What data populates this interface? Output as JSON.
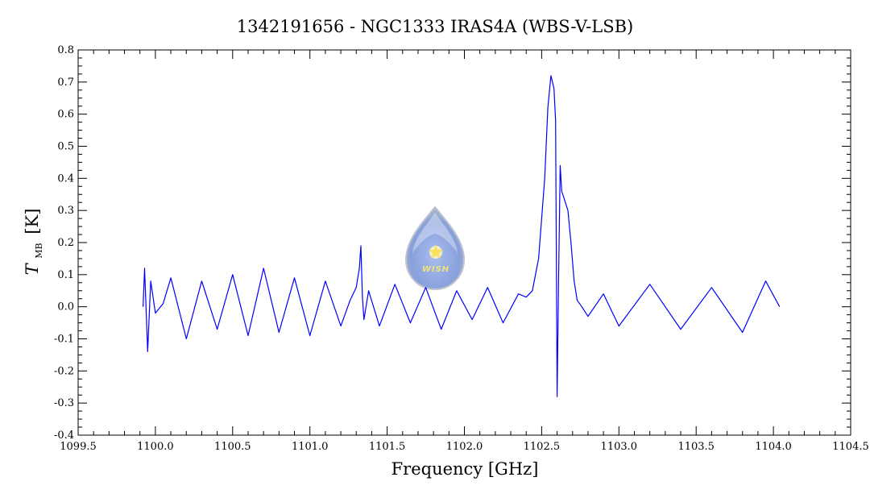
{
  "colors": {
    "series": "#0000ff",
    "frame": "#000000",
    "background": "#ffffff"
  },
  "logo": {
    "text": "WISH",
    "icon": "water-drop-star-icon"
  },
  "chart_data": {
    "type": "line",
    "title": "1342191656 - NGC1333 IRAS4A (WBS-V-LSB)",
    "xlabel": "Frequency [GHz]",
    "ylabel_main": "T",
    "ylabel_sub": "MB",
    "ylabel_unit": "[K]",
    "xlim": [
      1099.5,
      1104.5
    ],
    "ylim": [
      -0.4,
      0.8
    ],
    "x_ticks": [
      {
        "value": 1099.5,
        "label": "1099.5"
      },
      {
        "value": 1100.0,
        "label": "1100.0"
      },
      {
        "value": 1100.5,
        "label": "1100.5"
      },
      {
        "value": 1101.0,
        "label": "1101.0"
      },
      {
        "value": 1101.5,
        "label": "1101.5"
      },
      {
        "value": 1102.0,
        "label": "1102.0"
      },
      {
        "value": 1102.5,
        "label": "1102.5"
      },
      {
        "value": 1103.0,
        "label": "1103.0"
      },
      {
        "value": 1103.5,
        "label": "1103.5"
      },
      {
        "value": 1104.0,
        "label": "1104.0"
      },
      {
        "value": 1104.5,
        "label": "1104.5"
      }
    ],
    "y_ticks": [
      {
        "value": -0.4,
        "label": "-0.4"
      },
      {
        "value": -0.3,
        "label": "-0.3"
      },
      {
        "value": -0.2,
        "label": "-0.2"
      },
      {
        "value": -0.1,
        "label": "-0.1"
      },
      {
        "value": 0.0,
        "label": "0.0"
      },
      {
        "value": 0.1,
        "label": "0.1"
      },
      {
        "value": 0.2,
        "label": "0.2"
      },
      {
        "value": 0.3,
        "label": "0.3"
      },
      {
        "value": 0.4,
        "label": "0.4"
      },
      {
        "value": 0.5,
        "label": "0.5"
      },
      {
        "value": 0.6,
        "label": "0.6"
      },
      {
        "value": 0.7,
        "label": "0.7"
      },
      {
        "value": 0.8,
        "label": "0.8"
      }
    ],
    "grid": false,
    "series": [
      {
        "x": [
          1099.92,
          1099.93,
          1099.95,
          1099.97,
          1100.0,
          1100.05,
          1100.1,
          1100.2,
          1100.3,
          1100.4,
          1100.5,
          1100.6,
          1100.7,
          1100.8,
          1100.9,
          1101.0,
          1101.1,
          1101.2,
          1101.26,
          1101.3,
          1101.32,
          1101.33,
          1101.34,
          1101.35,
          1101.38,
          1101.45,
          1101.55,
          1101.65,
          1101.75,
          1101.85,
          1101.95,
          1102.05,
          1102.15,
          1102.25,
          1102.35,
          1102.4,
          1102.44,
          1102.48,
          1102.52,
          1102.54,
          1102.56,
          1102.58,
          1102.59,
          1102.6,
          1102.61,
          1102.62,
          1102.63,
          1102.65,
          1102.67,
          1102.69,
          1102.71,
          1102.73,
          1102.76,
          1102.8,
          1102.9,
          1103.0,
          1103.2,
          1103.4,
          1103.6,
          1103.8,
          1103.95,
          1104.04
        ],
        "y": [
          0.0,
          0.12,
          -0.14,
          0.08,
          -0.02,
          0.01,
          0.09,
          -0.1,
          0.08,
          -0.07,
          0.1,
          -0.09,
          0.12,
          -0.08,
          0.09,
          -0.09,
          0.08,
          -0.06,
          0.02,
          0.06,
          0.12,
          0.19,
          0.03,
          -0.04,
          0.05,
          -0.06,
          0.07,
          -0.05,
          0.06,
          -0.07,
          0.05,
          -0.04,
          0.06,
          -0.05,
          0.04,
          0.03,
          0.05,
          0.15,
          0.4,
          0.62,
          0.72,
          0.68,
          0.58,
          -0.28,
          0.1,
          0.44,
          0.36,
          0.33,
          0.3,
          0.2,
          0.08,
          0.02,
          0.0,
          -0.03,
          0.04,
          -0.06,
          0.07,
          -0.07,
          0.06,
          -0.08,
          0.08,
          0.0
        ]
      }
    ]
  }
}
